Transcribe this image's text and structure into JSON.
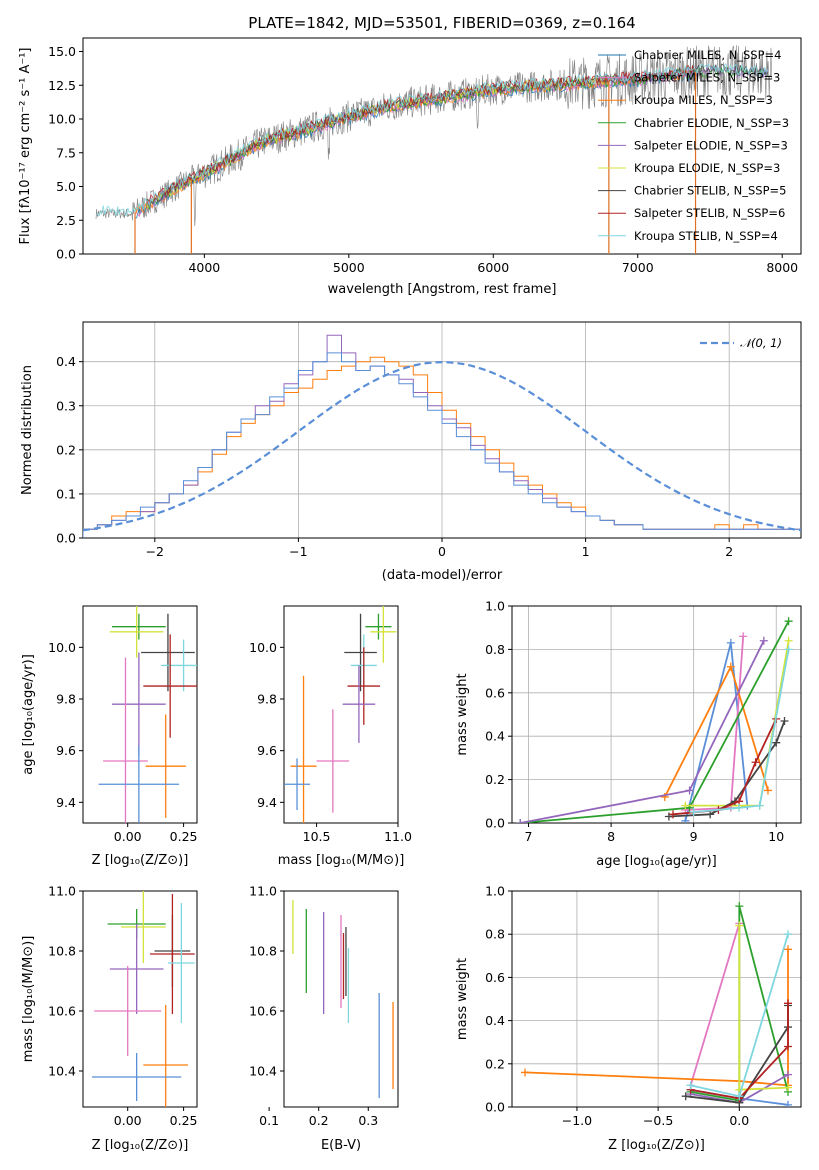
{
  "chart_data": [
    {
      "type": "line",
      "title": "PLATE=1842, MJD=53501, FIBERID=0369, z=0.164",
      "xlabel": "wavelength [Angstrom, rest frame]",
      "ylabel": "Flux [f_λ 10^-17 erg cm^-2 s^-1 A^-1]",
      "xlim": [
        3160,
        8130
      ],
      "ylim": [
        0,
        16
      ],
      "xticks": [
        "4000",
        "5000",
        "6000",
        "7000",
        "8000"
      ],
      "yticks": [
        "0.0",
        "2.5",
        "5.0",
        "7.5",
        "10.0",
        "12.5",
        "15.0"
      ],
      "legend_location": "upper-right",
      "observed_color": "#808080",
      "spectrum_anchor_points": [
        {
          "x": 3250,
          "y": 3.0
        },
        {
          "x": 3500,
          "y": 3.0
        },
        {
          "x": 3900,
          "y": 5.5
        },
        {
          "x": 4100,
          "y": 6.5
        },
        {
          "x": 4400,
          "y": 8.3
        },
        {
          "x": 4700,
          "y": 9.2
        },
        {
          "x": 5000,
          "y": 10.2
        },
        {
          "x": 5300,
          "y": 11.0
        },
        {
          "x": 5600,
          "y": 11.5
        },
        {
          "x": 6000,
          "y": 12.2
        },
        {
          "x": 6500,
          "y": 12.6
        },
        {
          "x": 7000,
          "y": 13.0
        },
        {
          "x": 7500,
          "y": 13.6
        },
        {
          "x": 7900,
          "y": 13.4
        }
      ],
      "series": [
        {
          "name": "Chabrier MILES, N_SSP=4",
          "color": "#1f77b4"
        },
        {
          "name": "Salpeter MILES, N_SSP=3",
          "color": "#e377c2"
        },
        {
          "name": "Kroupa MILES, N_SSP=3",
          "color": "#ff7f0e"
        },
        {
          "name": "Chabrier ELODIE, N_SSP=3",
          "color": "#2ca02c"
        },
        {
          "name": "Salpeter ELODIE, N_SSP=3",
          "color": "#9467bd"
        },
        {
          "name": "Kroupa ELODIE, N_SSP=3",
          "color": "#d4e33a"
        },
        {
          "name": "Chabrier STELIB, N_SSP=5",
          "color": "#444444"
        },
        {
          "name": "Salpeter STELIB, N_SSP=6",
          "color": "#b22222"
        },
        {
          "name": "Kroupa STELIB, N_SSP=4",
          "color": "#7ed6df"
        }
      ]
    },
    {
      "type": "area",
      "title": "",
      "xlabel": "(data-model)/error",
      "ylabel": "Normed distribution",
      "xlim": [
        -2.5,
        2.5
      ],
      "ylim": [
        0,
        0.49
      ],
      "xticks": [
        "−2",
        "−1",
        "0",
        "1",
        "2"
      ],
      "yticks": [
        "0.0",
        "0.1",
        "0.2",
        "0.3",
        "0.4"
      ],
      "grid": true,
      "legend_location": "upper-right",
      "reference_curve": {
        "name": "N(0, 1)",
        "color": "#5a8fd8",
        "dashed": true
      },
      "bin_width": 0.1,
      "series": [
        {
          "color": "#ff7f0e",
          "values": [
            0.02,
            0.03,
            0.05,
            0.06,
            0.06,
            0.08,
            0.1,
            0.12,
            0.15,
            0.19,
            0.23,
            0.26,
            0.28,
            0.3,
            0.33,
            0.34,
            0.36,
            0.38,
            0.39,
            0.4,
            0.41,
            0.4,
            0.39,
            0.37,
            0.33,
            0.29,
            0.26,
            0.23,
            0.2,
            0.17,
            0.14,
            0.12,
            0.1,
            0.08,
            0.07,
            0.05,
            0.04,
            0.03,
            0.03,
            0.02,
            0.02,
            0.02,
            0.02,
            0.02,
            0.03,
            0.02,
            0.03,
            0.02,
            0.02,
            0.02
          ]
        },
        {
          "color": "#9467bd",
          "values": [
            0.02,
            0.03,
            0.04,
            0.05,
            0.06,
            0.08,
            0.1,
            0.12,
            0.16,
            0.2,
            0.24,
            0.27,
            0.3,
            0.31,
            0.35,
            0.37,
            0.4,
            0.46,
            0.42,
            0.38,
            0.39,
            0.37,
            0.36,
            0.33,
            0.3,
            0.27,
            0.25,
            0.21,
            0.18,
            0.15,
            0.13,
            0.11,
            0.09,
            0.07,
            0.06,
            0.05,
            0.04,
            0.03,
            0.03,
            0.02,
            0.02,
            0.02,
            0.02,
            0.02,
            0.02,
            0.02,
            0.02,
            0.02,
            0.02,
            0.02
          ]
        },
        {
          "color": "#5a8fd8",
          "values": [
            0.02,
            0.03,
            0.04,
            0.05,
            0.07,
            0.08,
            0.1,
            0.13,
            0.16,
            0.2,
            0.24,
            0.27,
            0.28,
            0.32,
            0.34,
            0.38,
            0.4,
            0.42,
            0.4,
            0.38,
            0.39,
            0.37,
            0.35,
            0.32,
            0.29,
            0.26,
            0.23,
            0.2,
            0.17,
            0.15,
            0.12,
            0.1,
            0.08,
            0.07,
            0.06,
            0.05,
            0.04,
            0.03,
            0.03,
            0.02,
            0.02,
            0.02,
            0.02,
            0.02,
            0.02,
            0.02,
            0.02,
            0.02,
            0.02,
            0.02
          ]
        }
      ]
    },
    {
      "type": "scatter",
      "title": "",
      "xlabel": "Z [log10(Z/Z⊙)]",
      "ylabel": "age [log10(age/yr)]",
      "xlim": [
        -0.2,
        0.31
      ],
      "ylim": [
        9.32,
        10.16
      ],
      "xticks": [
        "0.00",
        "0.25"
      ],
      "yticks": [
        "9.4",
        "9.6",
        "9.8",
        "10.0"
      ],
      "points": [
        {
          "x": 0.05,
          "y": 10.08,
          "xerr": 0.12,
          "yerr": 0.05,
          "color": "#2ca02c"
        },
        {
          "x": 0.04,
          "y": 10.06,
          "xerr": 0.12,
          "yerr": 0.1,
          "color": "#d4e33a"
        },
        {
          "x": 0.18,
          "y": 9.98,
          "xerr": 0.12,
          "yerr": 0.15,
          "color": "#444444"
        },
        {
          "x": 0.25,
          "y": 9.93,
          "xerr": 0.1,
          "yerr": 0.1,
          "color": "#7ed6df"
        },
        {
          "x": 0.19,
          "y": 9.85,
          "xerr": 0.12,
          "yerr": 0.2,
          "color": "#b22222"
        },
        {
          "x": 0.05,
          "y": 9.78,
          "xerr": 0.12,
          "yerr": 0.2,
          "color": "#9467bd"
        },
        {
          "x": -0.01,
          "y": 9.56,
          "xerr": 0.1,
          "yerr": 0.4,
          "color": "#e377c2"
        },
        {
          "x": 0.17,
          "y": 9.54,
          "xerr": 0.09,
          "yerr": 0.2,
          "color": "#ff7f0e"
        },
        {
          "x": 0.05,
          "y": 9.47,
          "xerr": 0.18,
          "yerr": 0.15,
          "color": "#5a8fd8"
        }
      ]
    },
    {
      "type": "scatter",
      "title": "",
      "xlabel": "mass [log10(M/M⊙)]",
      "ylabel": "",
      "xlim": [
        10.3,
        11.0
      ],
      "ylim": [
        9.32,
        10.16
      ],
      "xticks": [
        "10.5",
        "11.0"
      ],
      "yticks": [
        "9.4",
        "9.6",
        "9.8",
        "10.0"
      ],
      "points": [
        {
          "x": 10.88,
          "y": 10.08,
          "xerr": 0.08,
          "yerr": 0.05,
          "color": "#2ca02c"
        },
        {
          "x": 10.91,
          "y": 10.06,
          "xerr": 0.08,
          "yerr": 0.12,
          "color": "#d4e33a"
        },
        {
          "x": 10.77,
          "y": 9.98,
          "xerr": 0.1,
          "yerr": 0.15,
          "color": "#444444"
        },
        {
          "x": 10.79,
          "y": 9.93,
          "xerr": 0.08,
          "yerr": 0.12,
          "color": "#7ed6df"
        },
        {
          "x": 10.79,
          "y": 9.85,
          "xerr": 0.1,
          "yerr": 0.15,
          "color": "#b22222"
        },
        {
          "x": 10.76,
          "y": 9.78,
          "xerr": 0.1,
          "yerr": 0.15,
          "color": "#9467bd"
        },
        {
          "x": 10.6,
          "y": 9.56,
          "xerr": 0.1,
          "yerr": 0.2,
          "color": "#e377c2"
        },
        {
          "x": 10.42,
          "y": 9.54,
          "xerr": 0.08,
          "yerr": 0.35,
          "color": "#ff7f0e"
        },
        {
          "x": 10.38,
          "y": 9.47,
          "xerr": 0.08,
          "yerr": 0.1,
          "color": "#5a8fd8"
        }
      ]
    },
    {
      "type": "line",
      "title": "",
      "xlabel": "age [log10(age/yr)]",
      "ylabel": "mass weight",
      "xlim": [
        6.8,
        10.3
      ],
      "ylim": [
        0.0,
        1.0
      ],
      "xticks": [
        "7",
        "8",
        "9",
        "10"
      ],
      "yticks": [
        "0.0",
        "0.2",
        "0.4",
        "0.6",
        "0.8",
        "1.0"
      ],
      "grid": true,
      "series": [
        {
          "color": "#5a8fd8",
          "x": [
            8.9,
            9.45,
            9.65
          ],
          "y": [
            0.01,
            0.83,
            0.08
          ]
        },
        {
          "color": "#e377c2",
          "x": [
            8.9,
            9.45,
            9.6
          ],
          "y": [
            0.06,
            0.07,
            0.86
          ]
        },
        {
          "color": "#ff7f0e",
          "x": [
            8.65,
            9.45,
            9.9
          ],
          "y": [
            0.12,
            0.72,
            0.15
          ]
        },
        {
          "color": "#2ca02c",
          "x": [
            6.9,
            8.95,
            10.15
          ],
          "y": [
            0.0,
            0.07,
            0.93
          ]
        },
        {
          "color": "#9467bd",
          "x": [
            6.9,
            8.95,
            9.85
          ],
          "y": [
            0.0,
            0.15,
            0.84
          ]
        },
        {
          "color": "#d4e33a",
          "x": [
            8.9,
            9.8,
            10.15
          ],
          "y": [
            0.08,
            0.08,
            0.84
          ]
        },
        {
          "color": "#444444",
          "x": [
            8.7,
            9.2,
            9.5,
            10.0,
            10.1
          ],
          "y": [
            0.03,
            0.04,
            0.1,
            0.37,
            0.47
          ]
        },
        {
          "color": "#b22222",
          "x": [
            8.75,
            9.3,
            9.55,
            9.75,
            10.0
          ],
          "y": [
            0.04,
            0.06,
            0.1,
            0.28,
            0.48
          ]
        },
        {
          "color": "#7ed6df",
          "x": [
            9.0,
            9.55,
            9.8,
            10.15
          ],
          "y": [
            0.05,
            0.07,
            0.08,
            0.8
          ]
        }
      ]
    },
    {
      "type": "scatter",
      "title": "",
      "xlabel": "Z [log10(Z/Z⊙)]",
      "ylabel": "mass [log10(M/M⊙)]",
      "xlim": [
        -0.2,
        0.31
      ],
      "ylim": [
        10.28,
        11.0
      ],
      "xticks": [
        "0.00",
        "0.25"
      ],
      "yticks": [
        "10.4",
        "10.6",
        "10.8",
        "11.0"
      ],
      "points": [
        {
          "x": 0.04,
          "y": 10.89,
          "xerr": 0.13,
          "yerr": 0.05,
          "color": "#2ca02c"
        },
        {
          "x": 0.07,
          "y": 10.88,
          "xerr": 0.1,
          "yerr": 0.12,
          "color": "#d4e33a"
        },
        {
          "x": 0.2,
          "y": 10.8,
          "xerr": 0.08,
          "yerr": 0.12,
          "color": "#444444"
        },
        {
          "x": 0.2,
          "y": 10.79,
          "xerr": 0.1,
          "yerr": 0.2,
          "color": "#b22222"
        },
        {
          "x": 0.24,
          "y": 10.76,
          "xerr": 0.06,
          "yerr": 0.2,
          "color": "#7ed6df"
        },
        {
          "x": 0.04,
          "y": 10.74,
          "xerr": 0.12,
          "yerr": 0.15,
          "color": "#9467bd"
        },
        {
          "x": 0.0,
          "y": 10.6,
          "xerr": 0.15,
          "yerr": 0.15,
          "color": "#e377c2"
        },
        {
          "x": 0.17,
          "y": 10.42,
          "xerr": 0.1,
          "yerr": 0.2,
          "color": "#ff7f0e"
        },
        {
          "x": 0.04,
          "y": 10.38,
          "xerr": 0.2,
          "yerr": 0.08,
          "color": "#5a8fd8"
        }
      ]
    },
    {
      "type": "scatter",
      "title": "",
      "xlabel": "E(B-V)",
      "ylabel": "",
      "xlim": [
        0.13,
        0.36
      ],
      "ylim": [
        10.28,
        11.0
      ],
      "xticks": [
        "0.1",
        "0.2",
        "0.3"
      ],
      "yticks": [
        "10.4",
        "10.6",
        "10.8",
        "11.0"
      ],
      "vertical_ranges": [
        {
          "x": 0.148,
          "lo": 10.79,
          "hi": 10.97,
          "color": "#d4e33a"
        },
        {
          "x": 0.175,
          "lo": 10.66,
          "hi": 10.94,
          "color": "#2ca02c"
        },
        {
          "x": 0.21,
          "lo": 10.59,
          "hi": 10.93,
          "color": "#9467bd"
        },
        {
          "x": 0.245,
          "lo": 10.61,
          "hi": 10.92,
          "color": "#e377c2"
        },
        {
          "x": 0.255,
          "lo": 10.65,
          "hi": 10.88,
          "color": "#444444"
        },
        {
          "x": 0.25,
          "lo": 10.64,
          "hi": 10.86,
          "color": "#b22222"
        },
        {
          "x": 0.26,
          "lo": 10.56,
          "hi": 10.81,
          "color": "#7ed6df"
        },
        {
          "x": 0.322,
          "lo": 10.31,
          "hi": 10.66,
          "color": "#5a8fd8"
        },
        {
          "x": 0.35,
          "lo": 10.34,
          "hi": 10.63,
          "color": "#ff7f0e"
        }
      ]
    },
    {
      "type": "line",
      "title": "",
      "xlabel": "Z [log10(Z/Z⊙)]",
      "ylabel": "mass weight",
      "xlim": [
        -1.4,
        0.38
      ],
      "ylim": [
        0.0,
        1.0
      ],
      "xticks": [
        "−1.0",
        "−0.5",
        "0.0"
      ],
      "yticks": [
        "0.0",
        "0.2",
        "0.4",
        "0.6",
        "0.8",
        "1.0"
      ],
      "grid": true,
      "series": [
        {
          "color": "#5a8fd8",
          "x": [
            -0.3,
            0.0,
            0.3
          ],
          "y": [
            0.08,
            0.04,
            0.01
          ]
        },
        {
          "color": "#e377c2",
          "x": [
            -0.3,
            0.0
          ],
          "y": [
            0.1,
            0.85
          ]
        },
        {
          "color": "#ff7f0e",
          "x": [
            -1.32,
            0.0,
            0.3,
            0.3
          ],
          "y": [
            0.16,
            0.12,
            0.1,
            0.73
          ]
        },
        {
          "color": "#2ca02c",
          "x": [
            -0.3,
            0.0,
            0.0,
            0.3
          ],
          "y": [
            0.07,
            0.03,
            0.93,
            0.07
          ]
        },
        {
          "color": "#9467bd",
          "x": [
            -0.3,
            0.0,
            0.3
          ],
          "y": [
            0.06,
            0.02,
            0.15
          ]
        },
        {
          "color": "#d4e33a",
          "x": [
            0.0,
            0.0,
            0.3
          ],
          "y": [
            0.84,
            0.08,
            0.09
          ]
        },
        {
          "color": "#444444",
          "x": [
            -0.33,
            0.0,
            0.3,
            0.3
          ],
          "y": [
            0.05,
            0.02,
            0.37,
            0.47
          ]
        },
        {
          "color": "#b22222",
          "x": [
            -0.3,
            0.0,
            0.3,
            0.3
          ],
          "y": [
            0.08,
            0.04,
            0.28,
            0.48
          ]
        },
        {
          "color": "#7ed6df",
          "x": [
            -0.3,
            0.0,
            0.3
          ],
          "y": [
            0.1,
            0.05,
            0.8
          ]
        }
      ]
    }
  ]
}
